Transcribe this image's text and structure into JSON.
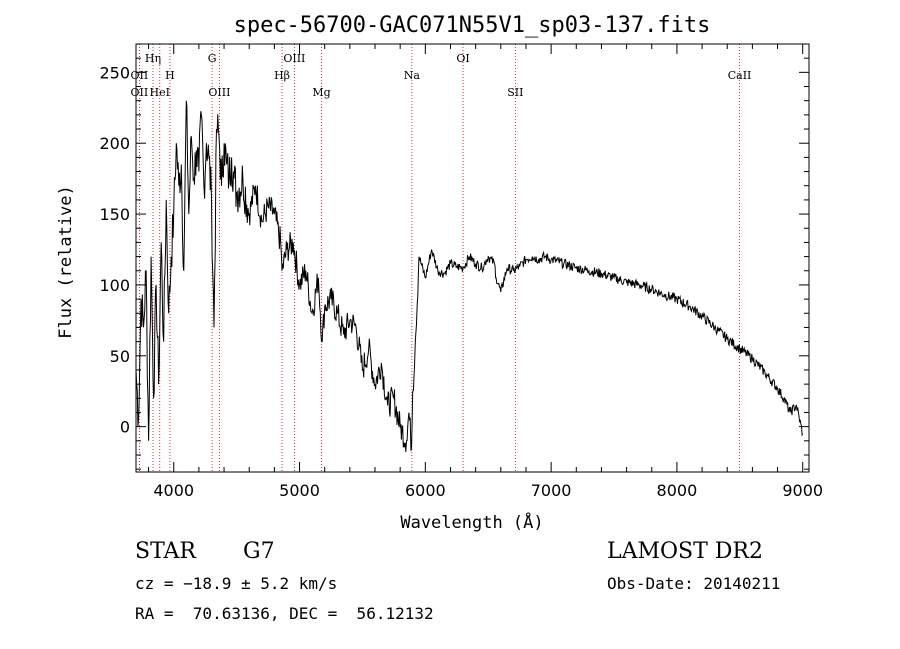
{
  "chart_data": {
    "type": "line",
    "title": "spec-56700-GAC071N55V1_sp03-137.fits",
    "xlabel": "Wavelength (Å)",
    "ylabel": "Flux (relative)",
    "xlim": [
      3700,
      9050
    ],
    "ylim": [
      -32,
      270
    ],
    "x_ticks": [
      4000,
      5000,
      6000,
      7000,
      8000,
      9000
    ],
    "y_ticks": [
      0,
      50,
      100,
      150,
      200,
      250
    ],
    "grid": false,
    "series": [
      {
        "x": [
          3700,
          3720,
          3740,
          3760,
          3780,
          3800,
          3820,
          3840,
          3860,
          3880,
          3900,
          3920,
          3940,
          3960,
          3980,
          4000,
          4020,
          4040,
          4060,
          4080,
          4100,
          4120,
          4140,
          4160,
          4180,
          4200,
          4220,
          4240,
          4260,
          4280,
          4300,
          4320,
          4340,
          4360,
          4380,
          4400,
          4420,
          4440,
          4460,
          4480,
          4500,
          4550,
          4600,
          4650,
          4700,
          4750,
          4800,
          4850,
          4861,
          4900,
          4950,
          5000,
          5050,
          5100,
          5150,
          5180,
          5200,
          5250,
          5300,
          5350,
          5400,
          5450,
          5500,
          5550,
          5600,
          5650,
          5700,
          5750,
          5800,
          5850,
          5870,
          5890,
          5900,
          5920,
          5950,
          6000,
          6050,
          6100,
          6150,
          6200,
          6250,
          6300,
          6350,
          6400,
          6450,
          6500,
          6550,
          6563,
          6600,
          6650,
          6700,
          6750,
          6800,
          6850,
          6900,
          6950,
          7000,
          7100,
          7200,
          7300,
          7400,
          7500,
          7600,
          7700,
          7800,
          7900,
          8000,
          8100,
          8200,
          8300,
          8400,
          8500,
          8600,
          8700,
          8800,
          8850,
          8900,
          8950,
          9000
        ],
        "values": [
          40,
          5,
          90,
          70,
          110,
          -10,
          120,
          20,
          100,
          30,
          130,
          60,
          160,
          80,
          120,
          150,
          200,
          170,
          185,
          110,
          230,
          150,
          205,
          175,
          195,
          180,
          220,
          170,
          200,
          190,
          160,
          70,
          210,
          205,
          170,
          200,
          185,
          175,
          190,
          175,
          165,
          175,
          150,
          170,
          145,
          155,
          150,
          130,
          110,
          125,
          130,
          100,
          110,
          80,
          105,
          60,
          85,
          90,
          80,
          65,
          75,
          70,
          40,
          55,
          30,
          45,
          15,
          20,
          0,
          -10,
          10,
          -15,
          25,
          60,
          120,
          105,
          125,
          110,
          108,
          115,
          113,
          112,
          120,
          115,
          112,
          120,
          115,
          105,
          95,
          112,
          110,
          113,
          118,
          120,
          118,
          120,
          118,
          115,
          112,
          110,
          108,
          105,
          102,
          100,
          97,
          93,
          90,
          85,
          78,
          70,
          62,
          55,
          48,
          38,
          27,
          20,
          10,
          15,
          -5
        ]
      }
    ],
    "annotations": [
      {
        "label": "Hη",
        "x": 3835,
        "row": 1
      },
      {
        "label": "OII",
        "x": 3727,
        "row": 2
      },
      {
        "label": "H",
        "x": 3970,
        "row": 2
      },
      {
        "label": "OII",
        "x": 3727,
        "row": 3
      },
      {
        "label": "HeI",
        "x": 3889,
        "row": 3
      },
      {
        "label": "G",
        "x": 4305,
        "row": 1
      },
      {
        "label": "OIII",
        "x": 4363,
        "row": 3
      },
      {
        "label": "OIII",
        "x": 4959,
        "row": 1
      },
      {
        "label": "Hβ",
        "x": 4861,
        "row": 2
      },
      {
        "label": "Mg",
        "x": 5175,
        "row": 3
      },
      {
        "label": "Na",
        "x": 5893,
        "row": 2
      },
      {
        "label": "OI",
        "x": 6300,
        "row": 1
      },
      {
        "label": "SII",
        "x": 6716,
        "row": 3
      },
      {
        "label": "CaII",
        "x": 8498,
        "row": 2
      }
    ],
    "line_marker_x": [
      3727,
      3835,
      3889,
      3970,
      4305,
      4363,
      4861,
      4959,
      5175,
      5893,
      6300,
      6716,
      8498
    ],
    "colors": {
      "spectrum": "#000000",
      "line_markers": "#c00000",
      "axes": "#000000"
    }
  },
  "info": {
    "object_type": "STAR",
    "subclass": "G7",
    "survey": "LAMOST DR2",
    "cz": "cz = −18.9 ± 5.2 km/s",
    "obs_date": "Obs-Date: 20140211",
    "coords": "RA =  70.63136, DEC =  56.12132"
  }
}
